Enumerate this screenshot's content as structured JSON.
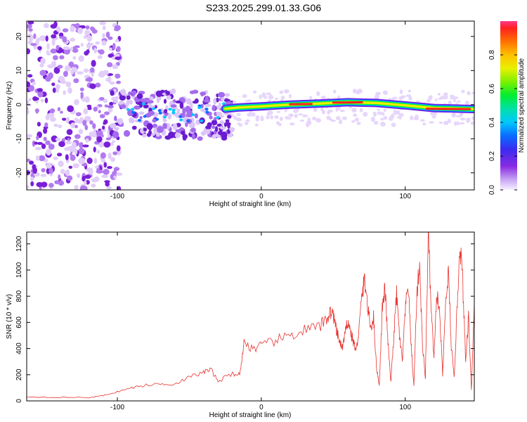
{
  "title": "S233.2025.299.01.33.G06",
  "colors": {
    "snr_line": "#e8322e",
    "waterfall_trace_low": "#8a2be2",
    "axis": "#000000"
  },
  "chart_data": [
    {
      "type": "heatmap",
      "name": "spectrogram",
      "xlabel": "Height of straight line (km)",
      "ylabel": "Frequency (Hz)",
      "xlim": [
        -163,
        148
      ],
      "ylim": [
        -25,
        24.5
      ],
      "x_ticks": [
        -100,
        0,
        100
      ],
      "x_tick_labels": [
        "-100",
        "0",
        "100"
      ],
      "y_ticks": [
        -20,
        -10,
        0,
        10,
        20
      ],
      "y_tick_labels": [
        "-20",
        "-10",
        "0",
        "10",
        "20"
      ],
      "ridge_frequency": [
        {
          "x": -25,
          "f": -1.2
        },
        {
          "x": -15,
          "f": -0.8
        },
        {
          "x": 0,
          "f": -0.5
        },
        {
          "x": 20,
          "f": 0.0
        },
        {
          "x": 40,
          "f": 0.3
        },
        {
          "x": 60,
          "f": 0.7
        },
        {
          "x": 80,
          "f": 0.5
        },
        {
          "x": 100,
          "f": -0.2
        },
        {
          "x": 120,
          "f": -1.0
        },
        {
          "x": 148,
          "f": -1.3
        }
      ],
      "colorbar": {
        "label": "Normalized spectral amplitude",
        "range": [
          0,
          1
        ],
        "ticks": [
          0.0,
          0.2,
          0.4,
          0.6,
          0.8
        ],
        "tick_labels": [
          "0.0",
          "0.2",
          "0.4",
          "0.6",
          "0.8"
        ]
      }
    },
    {
      "type": "line",
      "name": "snr",
      "xlabel": "Height of straight line (km)",
      "ylabel": "SNR (10 * v/v)",
      "xlim": [
        -163,
        148
      ],
      "ylim": [
        0,
        1290
      ],
      "x_ticks": [
        -100,
        0,
        100
      ],
      "x_tick_labels": [
        "-100",
        "0",
        "100"
      ],
      "y_ticks": [
        0,
        200,
        400,
        600,
        800,
        1000,
        1200
      ],
      "y_tick_labels": [
        "0",
        "200",
        "400",
        "600",
        "800",
        "1000",
        "1200"
      ],
      "series": [
        {
          "name": "SNR",
          "points": [
            {
              "x": -163,
              "y": 30
            },
            {
              "x": -140,
              "y": 28
            },
            {
              "x": -120,
              "y": 25
            },
            {
              "x": -110,
              "y": 40
            },
            {
              "x": -100,
              "y": 70
            },
            {
              "x": -90,
              "y": 100
            },
            {
              "x": -80,
              "y": 120
            },
            {
              "x": -70,
              "y": 130
            },
            {
              "x": -60,
              "y": 130
            },
            {
              "x": -50,
              "y": 180
            },
            {
              "x": -40,
              "y": 220
            },
            {
              "x": -35,
              "y": 240
            },
            {
              "x": -30,
              "y": 150
            },
            {
              "x": -20,
              "y": 210
            },
            {
              "x": -15,
              "y": 200
            },
            {
              "x": -12,
              "y": 440
            },
            {
              "x": -5,
              "y": 400
            },
            {
              "x": 0,
              "y": 420
            },
            {
              "x": 10,
              "y": 460
            },
            {
              "x": 20,
              "y": 500
            },
            {
              "x": 30,
              "y": 540
            },
            {
              "x": 40,
              "y": 560
            },
            {
              "x": 45,
              "y": 620
            },
            {
              "x": 48,
              "y": 680
            },
            {
              "x": 50,
              "y": 660
            },
            {
              "x": 52,
              "y": 540
            },
            {
              "x": 54,
              "y": 470
            },
            {
              "x": 56,
              "y": 400
            },
            {
              "x": 58,
              "y": 490
            },
            {
              "x": 60,
              "y": 620
            },
            {
              "x": 62,
              "y": 530
            },
            {
              "x": 64,
              "y": 450
            },
            {
              "x": 66,
              "y": 380
            },
            {
              "x": 68,
              "y": 560
            },
            {
              "x": 70,
              "y": 820
            },
            {
              "x": 72,
              "y": 930
            },
            {
              "x": 74,
              "y": 700
            },
            {
              "x": 76,
              "y": 560
            },
            {
              "x": 78,
              "y": 640
            },
            {
              "x": 80,
              "y": 260
            },
            {
              "x": 82,
              "y": 120
            },
            {
              "x": 84,
              "y": 700
            },
            {
              "x": 86,
              "y": 860
            },
            {
              "x": 88,
              "y": 450
            },
            {
              "x": 90,
              "y": 140
            },
            {
              "x": 92,
              "y": 480
            },
            {
              "x": 94,
              "y": 820
            },
            {
              "x": 96,
              "y": 500
            },
            {
              "x": 98,
              "y": 300
            },
            {
              "x": 100,
              "y": 680
            },
            {
              "x": 102,
              "y": 900
            },
            {
              "x": 104,
              "y": 450
            },
            {
              "x": 106,
              "y": 110
            },
            {
              "x": 108,
              "y": 800
            },
            {
              "x": 110,
              "y": 1050
            },
            {
              "x": 112,
              "y": 420
            },
            {
              "x": 114,
              "y": 180
            },
            {
              "x": 116,
              "y": 1280
            },
            {
              "x": 118,
              "y": 700
            },
            {
              "x": 120,
              "y": 320
            },
            {
              "x": 122,
              "y": 830
            },
            {
              "x": 124,
              "y": 650
            },
            {
              "x": 126,
              "y": 200
            },
            {
              "x": 128,
              "y": 720
            },
            {
              "x": 130,
              "y": 980
            },
            {
              "x": 132,
              "y": 420
            },
            {
              "x": 134,
              "y": 170
            },
            {
              "x": 136,
              "y": 700
            },
            {
              "x": 138,
              "y": 1220
            },
            {
              "x": 140,
              "y": 900
            },
            {
              "x": 142,
              "y": 300
            },
            {
              "x": 144,
              "y": 650
            },
            {
              "x": 146,
              "y": 80
            },
            {
              "x": 148,
              "y": 760
            }
          ]
        }
      ]
    }
  ]
}
